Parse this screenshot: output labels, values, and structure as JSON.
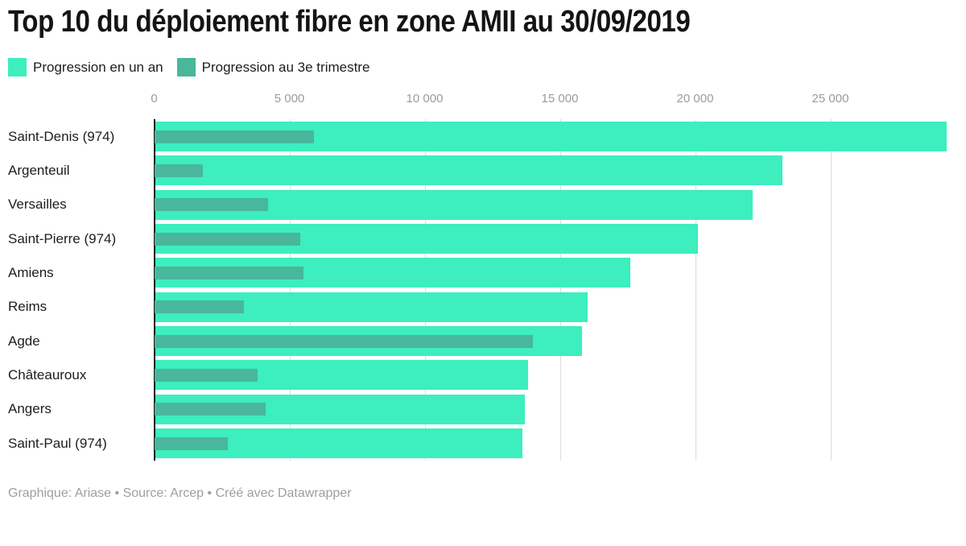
{
  "title": "Top 10 du déploiement fibre en zone AMII au 30/09/2019",
  "legend": [
    {
      "label": "Progression en un an",
      "color": "#3deebf"
    },
    {
      "label": "Progression au 3e trimestre",
      "color": "#48b79b"
    }
  ],
  "footer": "Graphique: Ariase • Source: Arcep • Créé avec Datawrapper",
  "colors": {
    "year_bar": "#3deebf",
    "quarter_bar": "#48b79b",
    "gridline": "#dcdcdc",
    "axis": "#111111",
    "tick_text": "#9b9b9b",
    "title_text": "#141414",
    "footer_text": "#9e9e9e"
  },
  "chart_data": {
    "type": "bar",
    "orientation": "horizontal",
    "title": "Top 10 du déploiement fibre en zone AMII au 30/09/2019",
    "xlabel": "",
    "ylabel": "",
    "xlim": [
      0,
      29500
    ],
    "grid": true,
    "legend_position": "top",
    "categories": [
      "Saint-Denis (974)",
      "Argenteuil",
      "Versailles",
      "Saint-Pierre (974)",
      "Amiens",
      "Reims",
      "Agde",
      "Châteauroux",
      "Angers",
      "Saint-Paul (974)"
    ],
    "series": [
      {
        "name": "Progression en un an",
        "color": "#3deebf",
        "values": [
          29300,
          23200,
          22100,
          20100,
          17600,
          16000,
          15800,
          13800,
          13700,
          13600
        ]
      },
      {
        "name": "Progression au 3e trimestre",
        "color": "#48b79b",
        "values": [
          5900,
          1800,
          4200,
          5400,
          5500,
          3300,
          14000,
          3800,
          4100,
          2700
        ]
      }
    ],
    "x_ticks": [
      "0",
      "5 000",
      "10 000",
      "15 000",
      "20 000",
      "25 000"
    ],
    "x_tick_values": [
      0,
      5000,
      10000,
      15000,
      20000,
      25000
    ]
  }
}
